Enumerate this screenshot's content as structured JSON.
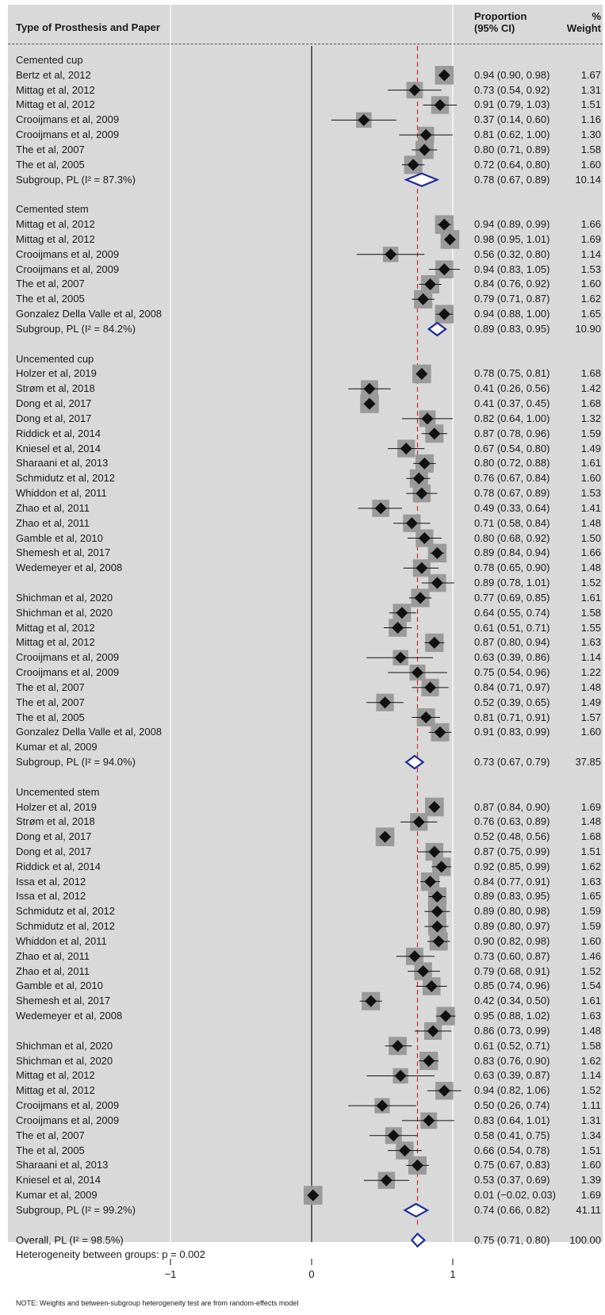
{
  "header": {
    "label_col": "Type of Prosthesis and Paper",
    "proportion_line1": "Proportion",
    "proportion_line2": "(95% CI)",
    "weight_line1": "%",
    "weight_line2": "Weight"
  },
  "note": "NOTE: Weights and between-subgroup heterogeneity test are from random-effects model",
  "chart_data": {
    "type": "forest",
    "x_axis": {
      "ticks": [
        -1,
        0,
        1
      ],
      "tick_labels": [
        "−1",
        "0",
        "1"
      ]
    },
    "overall_reference": 0.75,
    "heterogeneity_text": "Heterogeneity between groups: p = 0.002",
    "groups": [
      {
        "title": "Cemented cup",
        "rows": [
          {
            "label": "Bertz et al, 2012",
            "est": 0.94,
            "lo": 0.9,
            "hi": 0.98,
            "ci": "0.94 (0.90, 0.98)",
            "weight": "1.67"
          },
          {
            "label": "Mittag et al, 2012",
            "est": 0.73,
            "lo": 0.54,
            "hi": 0.92,
            "ci": "0.73 (0.54, 0.92)",
            "weight": "1.31"
          },
          {
            "label": "Mittag et al, 2012",
            "est": 0.91,
            "lo": 0.79,
            "hi": 1.03,
            "ci": "0.91 (0.79, 1.03)",
            "weight": "1.51"
          },
          {
            "label": "Crooijmans et al, 2009",
            "est": 0.37,
            "lo": 0.14,
            "hi": 0.6,
            "ci": "0.37 (0.14, 0.60)",
            "weight": "1.16"
          },
          {
            "label": "Crooijmans et al, 2009",
            "est": 0.81,
            "lo": 0.62,
            "hi": 1.0,
            "ci": "0.81 (0.62, 1.00)",
            "weight": "1.30"
          },
          {
            "label": "The et al, 2007",
            "est": 0.8,
            "lo": 0.71,
            "hi": 0.89,
            "ci": "0.80 (0.71, 0.89)",
            "weight": "1.58"
          },
          {
            "label": "The et al, 2005",
            "est": 0.72,
            "lo": 0.64,
            "hi": 0.8,
            "ci": "0.72 (0.64, 0.80)",
            "weight": "1.60"
          }
        ],
        "subgroup": {
          "label": "Subgroup, PL (I² = 87.3%)",
          "est": 0.78,
          "lo": 0.67,
          "hi": 0.89,
          "ci": "0.78 (0.67, 0.89)",
          "weight": "10.14"
        }
      },
      {
        "title": "Cemented stem",
        "rows": [
          {
            "label": "Mittag et al, 2012",
            "est": 0.94,
            "lo": 0.89,
            "hi": 0.99,
            "ci": "0.94 (0.89, 0.99)",
            "weight": "1.66"
          },
          {
            "label": "Mittag et al, 2012",
            "est": 0.98,
            "lo": 0.95,
            "hi": 1.01,
            "ci": "0.98 (0.95, 1.01)",
            "weight": "1.69"
          },
          {
            "label": "Crooijmans et al, 2009",
            "est": 0.56,
            "lo": 0.32,
            "hi": 0.8,
            "ci": "0.56 (0.32, 0.80)",
            "weight": "1.14"
          },
          {
            "label": "Crooijmans et al, 2009",
            "est": 0.94,
            "lo": 0.83,
            "hi": 1.05,
            "ci": "0.94 (0.83, 1.05)",
            "weight": "1.53"
          },
          {
            "label": "The et al, 2007",
            "est": 0.84,
            "lo": 0.76,
            "hi": 0.92,
            "ci": "0.84 (0.76, 0.92)",
            "weight": "1.60"
          },
          {
            "label": "The et al, 2005",
            "est": 0.79,
            "lo": 0.71,
            "hi": 0.87,
            "ci": "0.79 (0.71, 0.87)",
            "weight": "1.62"
          },
          {
            "label": "Gonzalez Della Valle et al, 2008",
            "est": 0.94,
            "lo": 0.88,
            "hi": 1.0,
            "ci": "0.94 (0.88, 1.00)",
            "weight": "1.65"
          }
        ],
        "subgroup": {
          "label": "Subgroup, PL (I² = 84.2%)",
          "est": 0.89,
          "lo": 0.83,
          "hi": 0.95,
          "ci": "0.89 (0.83, 0.95)",
          "weight": "10.90"
        }
      },
      {
        "title": "Uncemented cup",
        "rows": [
          {
            "label": "Holzer et al, 2019",
            "est": 0.78,
            "lo": 0.75,
            "hi": 0.81,
            "ci": "0.78 (0.75, 0.81)",
            "weight": "1.68"
          },
          {
            "label": "Strøm et al, 2018",
            "est": 0.41,
            "lo": 0.26,
            "hi": 0.56,
            "ci": "0.41 (0.26, 0.56)",
            "weight": "1.42"
          },
          {
            "label": "Dong et al, 2017",
            "est": 0.41,
            "lo": 0.37,
            "hi": 0.45,
            "ci": "0.41 (0.37, 0.45)",
            "weight": "1.68"
          },
          {
            "label": "Dong et al, 2017",
            "est": 0.82,
            "lo": 0.64,
            "hi": 1.0,
            "ci": "0.82 (0.64, 1.00)",
            "weight": "1.32"
          },
          {
            "label": "Riddick et al, 2014",
            "est": 0.87,
            "lo": 0.78,
            "hi": 0.96,
            "ci": "0.87 (0.78, 0.96)",
            "weight": "1.59"
          },
          {
            "label": "Kniesel et al, 2014",
            "est": 0.67,
            "lo": 0.54,
            "hi": 0.8,
            "ci": "0.67 (0.54, 0.80)",
            "weight": "1.49"
          },
          {
            "label": "Sharaani et al, 2013",
            "est": 0.8,
            "lo": 0.72,
            "hi": 0.88,
            "ci": "0.80 (0.72, 0.88)",
            "weight": "1.61"
          },
          {
            "label": "Schmidutz et al, 2012",
            "est": 0.76,
            "lo": 0.67,
            "hi": 0.84,
            "ci": "0.76 (0.67, 0.84)",
            "weight": "1.60"
          },
          {
            "label": "Whiddon et al, 2011",
            "est": 0.78,
            "lo": 0.67,
            "hi": 0.89,
            "ci": "0.78 (0.67, 0.89)",
            "weight": "1.53"
          },
          {
            "label": "Zhao et al, 2011",
            "est": 0.49,
            "lo": 0.33,
            "hi": 0.64,
            "ci": "0.49 (0.33, 0.64)",
            "weight": "1.41"
          },
          {
            "label": "Zhao et al, 2011",
            "est": 0.71,
            "lo": 0.58,
            "hi": 0.84,
            "ci": "0.71 (0.58, 0.84)",
            "weight": "1.48"
          },
          {
            "label": "Gamble et al, 2010",
            "est": 0.8,
            "lo": 0.68,
            "hi": 0.92,
            "ci": "0.80 (0.68, 0.92)",
            "weight": "1.50"
          },
          {
            "label": "Shemesh et al, 2017",
            "est": 0.89,
            "lo": 0.84,
            "hi": 0.94,
            "ci": "0.89 (0.84, 0.94)",
            "weight": "1.66"
          },
          {
            "label": "Wedemeyer et al, 2008",
            "est": 0.78,
            "lo": 0.65,
            "hi": 0.9,
            "ci": "0.78 (0.65, 0.90)",
            "weight": "1.48"
          },
          {
            "label": "",
            "est": 0.89,
            "lo": 0.78,
            "hi": 1.01,
            "ci": "0.89 (0.78, 1.01)",
            "weight": "1.52"
          },
          {
            "label": "Shichman et al, 2020",
            "est": 0.77,
            "lo": 0.69,
            "hi": 0.85,
            "ci": "0.77 (0.69, 0.85)",
            "weight": "1.61"
          },
          {
            "label": "Shichman et al, 2020",
            "est": 0.64,
            "lo": 0.55,
            "hi": 0.74,
            "ci": "0.64 (0.55, 0.74)",
            "weight": "1.58"
          },
          {
            "label": "Mittag et al, 2012",
            "est": 0.61,
            "lo": 0.51,
            "hi": 0.71,
            "ci": "0.61 (0.51, 0.71)",
            "weight": "1.55"
          },
          {
            "label": "Mittag et al, 2012",
            "est": 0.87,
            "lo": 0.8,
            "hi": 0.94,
            "ci": "0.87 (0.80, 0.94)",
            "weight": "1.63"
          },
          {
            "label": "Crooijmans et al, 2009",
            "est": 0.63,
            "lo": 0.39,
            "hi": 0.86,
            "ci": "0.63 (0.39, 0.86)",
            "weight": "1.14"
          },
          {
            "label": "Crooijmans et al, 2009",
            "est": 0.75,
            "lo": 0.54,
            "hi": 0.96,
            "ci": "0.75 (0.54, 0.96)",
            "weight": "1.22"
          },
          {
            "label": "The et al, 2007",
            "est": 0.84,
            "lo": 0.71,
            "hi": 0.97,
            "ci": "0.84 (0.71, 0.97)",
            "weight": "1.48"
          },
          {
            "label": "The et al, 2007",
            "est": 0.52,
            "lo": 0.39,
            "hi": 0.65,
            "ci": "0.52 (0.39, 0.65)",
            "weight": "1.49"
          },
          {
            "label": "The et al, 2005",
            "est": 0.81,
            "lo": 0.71,
            "hi": 0.91,
            "ci": "0.81 (0.71, 0.91)",
            "weight": "1.57"
          },
          {
            "label": "Gonzalez Della Valle et al, 2008",
            "est": 0.91,
            "lo": 0.83,
            "hi": 0.99,
            "ci": "0.91 (0.83, 0.99)",
            "weight": "1.60"
          },
          {
            "label": "Kumar et al, 2009",
            "est": null,
            "lo": null,
            "hi": null,
            "ci": "",
            "weight": ""
          }
        ],
        "subgroup": {
          "label": "Subgroup, PL (I² = 94.0%)",
          "est": 0.73,
          "lo": 0.67,
          "hi": 0.79,
          "ci": "0.73 (0.67, 0.79)",
          "weight": "37.85"
        }
      },
      {
        "title": "Uncemented stem",
        "rows": [
          {
            "label": "Holzer et al, 2019",
            "est": 0.87,
            "lo": 0.84,
            "hi": 0.9,
            "ci": "0.87 (0.84, 0.90)",
            "weight": "1.69"
          },
          {
            "label": "Strøm et al, 2018",
            "est": 0.76,
            "lo": 0.63,
            "hi": 0.89,
            "ci": "0.76 (0.63, 0.89)",
            "weight": "1.48"
          },
          {
            "label": "Dong et al, 2017",
            "est": 0.52,
            "lo": 0.48,
            "hi": 0.56,
            "ci": "0.52 (0.48, 0.56)",
            "weight": "1.68"
          },
          {
            "label": "Dong et al, 2017",
            "est": 0.87,
            "lo": 0.75,
            "hi": 0.99,
            "ci": "0.87 (0.75, 0.99)",
            "weight": "1.51"
          },
          {
            "label": "Riddick et al, 2014",
            "est": 0.92,
            "lo": 0.85,
            "hi": 0.99,
            "ci": "0.92 (0.85, 0.99)",
            "weight": "1.62"
          },
          {
            "label": "Issa et al, 2012",
            "est": 0.84,
            "lo": 0.77,
            "hi": 0.91,
            "ci": "0.84 (0.77, 0.91)",
            "weight": "1.63"
          },
          {
            "label": "Issa et al, 2012",
            "est": 0.89,
            "lo": 0.83,
            "hi": 0.95,
            "ci": "0.89 (0.83, 0.95)",
            "weight": "1.65"
          },
          {
            "label": "Schmidutz et al, 2012",
            "est": 0.89,
            "lo": 0.8,
            "hi": 0.98,
            "ci": "0.89 (0.80, 0.98)",
            "weight": "1.59"
          },
          {
            "label": "Schmidutz et al, 2012",
            "est": 0.89,
            "lo": 0.8,
            "hi": 0.97,
            "ci": "0.89 (0.80, 0.97)",
            "weight": "1.59"
          },
          {
            "label": "Whiddon et al, 2011",
            "est": 0.9,
            "lo": 0.82,
            "hi": 0.98,
            "ci": "0.90 (0.82, 0.98)",
            "weight": "1.60"
          },
          {
            "label": "Zhao et al, 2011",
            "est": 0.73,
            "lo": 0.6,
            "hi": 0.87,
            "ci": "0.73 (0.60, 0.87)",
            "weight": "1.46"
          },
          {
            "label": "Zhao et al, 2011",
            "est": 0.79,
            "lo": 0.68,
            "hi": 0.91,
            "ci": "0.79 (0.68, 0.91)",
            "weight": "1.52"
          },
          {
            "label": "Gamble et al, 2010",
            "est": 0.85,
            "lo": 0.74,
            "hi": 0.96,
            "ci": "0.85 (0.74, 0.96)",
            "weight": "1.54"
          },
          {
            "label": "Shemesh et al, 2017",
            "est": 0.42,
            "lo": 0.34,
            "hi": 0.5,
            "ci": "0.42 (0.34, 0.50)",
            "weight": "1.61"
          },
          {
            "label": "Wedemeyer et al, 2008",
            "est": 0.95,
            "lo": 0.88,
            "hi": 1.02,
            "ci": "0.95 (0.88, 1.02)",
            "weight": "1.63"
          },
          {
            "label": "",
            "est": 0.86,
            "lo": 0.73,
            "hi": 0.99,
            "ci": "0.86 (0.73, 0.99)",
            "weight": "1.48"
          },
          {
            "label": "Shichman et al, 2020",
            "est": 0.61,
            "lo": 0.52,
            "hi": 0.71,
            "ci": "0.61 (0.52, 0.71)",
            "weight": "1.58"
          },
          {
            "label": "Shichman et al, 2020",
            "est": 0.83,
            "lo": 0.76,
            "hi": 0.9,
            "ci": "0.83 (0.76, 0.90)",
            "weight": "1.62"
          },
          {
            "label": "Mittag et al, 2012",
            "est": 0.63,
            "lo": 0.39,
            "hi": 0.87,
            "ci": "0.63 (0.39, 0.87)",
            "weight": "1.14"
          },
          {
            "label": "Mittag et al, 2012",
            "est": 0.94,
            "lo": 0.82,
            "hi": 1.06,
            "ci": "0.94 (0.82, 1.06)",
            "weight": "1.52"
          },
          {
            "label": "Crooijmans et al, 2009",
            "est": 0.5,
            "lo": 0.26,
            "hi": 0.74,
            "ci": "0.50 (0.26, 0.74)",
            "weight": "1.11"
          },
          {
            "label": "Crooijmans et al, 2009",
            "est": 0.83,
            "lo": 0.64,
            "hi": 1.01,
            "ci": "0.83 (0.64, 1.01)",
            "weight": "1.31"
          },
          {
            "label": "The et al, 2007",
            "est": 0.58,
            "lo": 0.41,
            "hi": 0.75,
            "ci": "0.58 (0.41, 0.75)",
            "weight": "1.34"
          },
          {
            "label": "The et al, 2005",
            "est": 0.66,
            "lo": 0.54,
            "hi": 0.78,
            "ci": "0.66 (0.54, 0.78)",
            "weight": "1.51"
          },
          {
            "label": "Sharaani et al, 2013",
            "est": 0.75,
            "lo": 0.67,
            "hi": 0.83,
            "ci": "0.75 (0.67, 0.83)",
            "weight": "1.60"
          },
          {
            "label": "Kniesel et al, 2014",
            "est": 0.53,
            "lo": 0.37,
            "hi": 0.69,
            "ci": "0.53 (0.37, 0.69)",
            "weight": "1.39"
          },
          {
            "label": "Kumar et al, 2009",
            "est": 0.01,
            "lo": -0.02,
            "hi": 0.03,
            "ci": "0.01 (−0.02, 0.03)",
            "weight": "1.69"
          }
        ],
        "subgroup": {
          "label": "Subgroup, PL (I² = 99.2%)",
          "est": 0.74,
          "lo": 0.66,
          "hi": 0.82,
          "ci": "0.74 (0.66, 0.82)",
          "weight": "41.11"
        }
      }
    ],
    "overall": {
      "label": "Overall, PL (I² = 98.5%)",
      "est": 0.75,
      "lo": 0.71,
      "hi": 0.8,
      "ci": "0.75 (0.71, 0.80)",
      "weight": "100.00"
    },
    "colors": {
      "background": "#d9d9d9",
      "diamond": "#1f2a9a",
      "reference_line": "#cc2b2b",
      "marker": "#111111",
      "box": "#9a9a9a"
    }
  }
}
